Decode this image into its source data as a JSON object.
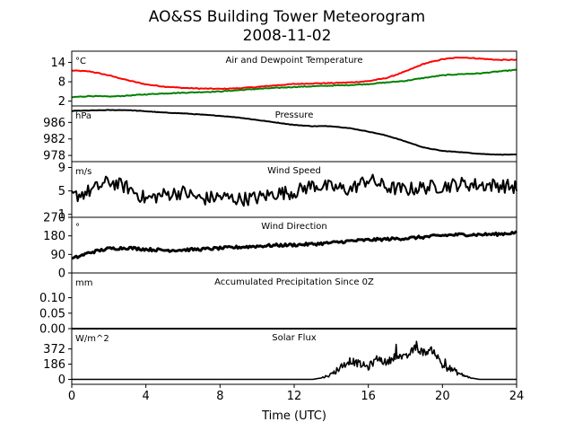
{
  "figure": {
    "title": "AO&SS Building Tower Meteorogram",
    "subtitle": "2008-11-02",
    "xlabel": "Time (UTC)",
    "xlim": [
      0,
      24
    ],
    "xticks": [
      "0",
      "4",
      "8",
      "12",
      "16",
      "20",
      "24"
    ]
  },
  "chart_data": [
    {
      "type": "line",
      "title": "Air and Dewpoint Temperature",
      "unit": "°C",
      "ylim": [
        0.5,
        17.5
      ],
      "yticks": [
        2,
        8,
        14
      ],
      "ytick_labels": [
        "2",
        "8",
        "14"
      ],
      "x": [
        0,
        1,
        2,
        3,
        4,
        5,
        6,
        7,
        8,
        9,
        10,
        11,
        12,
        13,
        14,
        15,
        16,
        17,
        18,
        19,
        20,
        21,
        22,
        23,
        24
      ],
      "series": [
        {
          "color": "#ff0000",
          "values": [
            11.5,
            11.2,
            10.0,
            8.5,
            7.2,
            6.5,
            6.1,
            5.9,
            5.8,
            6.0,
            6.4,
            6.9,
            7.3,
            7.5,
            7.6,
            7.8,
            8.2,
            9.2,
            11.2,
            13.6,
            15.0,
            15.6,
            15.2,
            14.8,
            14.8
          ]
        },
        {
          "color": "#008000",
          "values": [
            3.2,
            3.6,
            3.4,
            3.7,
            4.1,
            4.4,
            4.6,
            4.8,
            5.0,
            5.4,
            5.8,
            6.1,
            6.4,
            6.6,
            6.8,
            7.0,
            7.3,
            7.8,
            8.3,
            9.2,
            10.0,
            10.4,
            10.6,
            11.2,
            11.7
          ]
        }
      ]
    },
    {
      "type": "line",
      "title": "Pressure",
      "unit": "hPa",
      "ylim": [
        976.5,
        990.0
      ],
      "yticks": [
        978,
        982,
        986
      ],
      "ytick_labels": [
        "978",
        "982",
        "986"
      ],
      "x": [
        0,
        1,
        2,
        3,
        4,
        5,
        6,
        7,
        8,
        9,
        10,
        11,
        12,
        13,
        14,
        15,
        16,
        17,
        18,
        19,
        20,
        21,
        22,
        23,
        24
      ],
      "series": [
        {
          "color": "#000000",
          "values": [
            988.8,
            988.9,
            989.0,
            989.0,
            988.7,
            988.4,
            988.2,
            987.9,
            987.6,
            987.2,
            986.6,
            986.0,
            985.4,
            985.1,
            985.1,
            984.6,
            983.8,
            982.8,
            981.4,
            979.9,
            979.1,
            978.8,
            978.4,
            978.2,
            978.2
          ]
        }
      ]
    },
    {
      "type": "line",
      "title": "Wind Speed",
      "unit": "m/s",
      "ylim": [
        0.5,
        10.0
      ],
      "yticks": [
        1,
        5,
        9
      ],
      "ytick_labels": [
        "1",
        "5",
        "9"
      ],
      "x": [
        0,
        1,
        2,
        3,
        4,
        5,
        6,
        7,
        8,
        9,
        10,
        11,
        12,
        13,
        14,
        15,
        16,
        17,
        18,
        19,
        20,
        21,
        22,
        23,
        24
      ],
      "series": [
        {
          "color": "#000000",
          "values": [
            4.0,
            5.0,
            6.6,
            5.6,
            3.6,
            4.4,
            4.8,
            3.6,
            4.0,
            3.6,
            3.8,
            4.6,
            4.8,
            6.0,
            5.6,
            5.2,
            7.0,
            5.6,
            5.2,
            5.6,
            5.8,
            6.2,
            6.0,
            6.0,
            5.6
          ]
        }
      ]
    },
    {
      "type": "line",
      "title": "Wind Direction",
      "unit": "°",
      "ylim": [
        0,
        270
      ],
      "yticks": [
        0,
        90,
        180,
        270
      ],
      "ytick_labels": [
        "0",
        "90",
        "180",
        "270"
      ],
      "x": [
        0,
        1,
        2,
        3,
        4,
        5,
        6,
        7,
        8,
        9,
        10,
        11,
        12,
        13,
        14,
        15,
        16,
        17,
        18,
        19,
        20,
        21,
        22,
        23,
        24
      ],
      "series": [
        {
          "color": "#000000",
          "values": [
            68,
            100,
            118,
            122,
            115,
            110,
            112,
            115,
            120,
            125,
            130,
            134,
            136,
            140,
            146,
            155,
            160,
            164,
            168,
            174,
            182,
            186,
            186,
            188,
            196
          ]
        }
      ]
    },
    {
      "type": "line",
      "title": "Accumulated Precipitation Since 0Z",
      "unit": "mm",
      "ylim": [
        0.0,
        0.18
      ],
      "yticks": [
        0.0,
        0.05,
        0.1
      ],
      "ytick_labels": [
        "0.00",
        "0.05",
        "0.10"
      ],
      "x": [
        0,
        24
      ],
      "series": [
        {
          "color": "#000000",
          "values": [
            0.0,
            0.0
          ]
        }
      ]
    },
    {
      "type": "line",
      "title": "Solar Flux",
      "unit": "W/m^2",
      "ylim": [
        -60,
        620
      ],
      "yticks": [
        0,
        186,
        372
      ],
      "ytick_labels": [
        "0",
        "186",
        "372"
      ],
      "x": [
        0,
        13.0,
        13.5,
        14.0,
        14.5,
        15.0,
        15.5,
        16.0,
        16.5,
        17.0,
        17.5,
        18.0,
        18.5,
        19.0,
        19.5,
        20.0,
        20.5,
        21.0,
        21.5,
        22.0,
        24
      ],
      "series": [
        {
          "color": "#000000",
          "values": [
            0,
            0,
            20,
            60,
            150,
            230,
            190,
            150,
            260,
            200,
            300,
            260,
            380,
            330,
            360,
            170,
            120,
            60,
            20,
            0,
            0
          ]
        }
      ]
    }
  ]
}
